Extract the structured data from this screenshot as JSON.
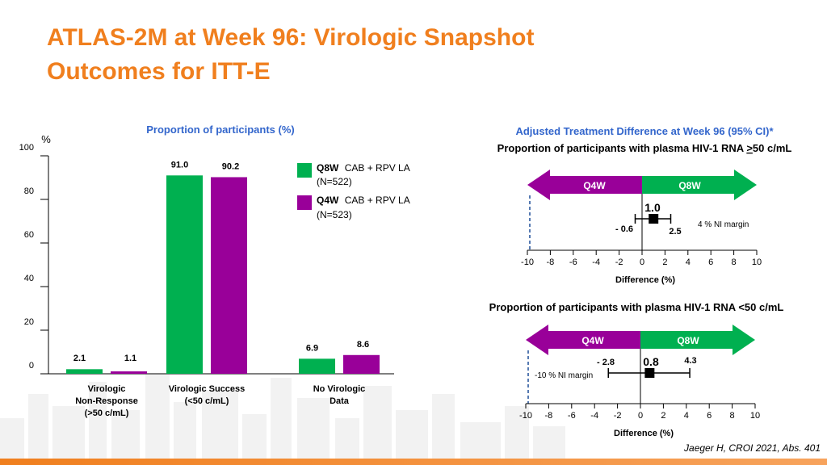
{
  "title_line1": "ATLAS-2M at Week 96: Virologic Snapshot",
  "title_line2": "Outcomes for ITT-E",
  "citation": "Jaeger H, CROI 2021, Abs. 401",
  "colors": {
    "q8w": "#00B050",
    "q4w": "#990099",
    "title": "#F07F1E",
    "accent_blue": "#3366CC"
  },
  "chart_data": [
    {
      "type": "bar",
      "title": "Proportion of participants (%)",
      "ylabel": "%",
      "ylim": [
        0,
        100
      ],
      "yticks": [
        0,
        20,
        40,
        60,
        80,
        100
      ],
      "categories": [
        [
          "Virologic",
          "Non-Response",
          "(>50 c/mL)"
        ],
        [
          "Virologic Success",
          "(<50 c/mL)"
        ],
        [
          "No Virologic",
          "Data"
        ]
      ],
      "series": [
        {
          "name": "Q8W",
          "name_rest": "CAB + RPV LA",
          "n": "(N=522)",
          "color": "#00B050",
          "values": [
            2.1,
            91.0,
            6.9
          ],
          "labels": [
            "2.1",
            "91.0",
            "6.9"
          ]
        },
        {
          "name": "Q4W",
          "name_rest": "CAB + RPV LA",
          "n": "(N=523)",
          "color": "#990099",
          "values": [
            1.1,
            90.2,
            8.6
          ],
          "labels": [
            "1.1",
            "90.2",
            "8.6"
          ]
        }
      ],
      "legend_position": "top-right"
    },
    {
      "type": "forest",
      "header": "Adjusted Treatment Difference at Week 96 (95% CI)*",
      "title": "Proportion of participants with plasma HIV-1 RNA >50 c/mL",
      "arrow_left": "Q4W",
      "arrow_right": "Q8W",
      "estimate": 1.0,
      "estimate_label": "1.0",
      "ci": [
        -0.6,
        2.5
      ],
      "ci_labels": [
        "- 0.6",
        "2.5"
      ],
      "margin_label": "4 % NI margin",
      "xlim": [
        -10,
        10
      ],
      "xticks": [
        "-10",
        "-8",
        "-6",
        "-4",
        "-2",
        "0",
        "2",
        "4",
        "6",
        "8",
        "10"
      ],
      "xlabel": "Difference (%)"
    },
    {
      "type": "forest",
      "title": "Proportion of participants with plasma HIV-1 RNA <50 c/mL",
      "arrow_left": "Q4W",
      "arrow_right": "Q8W",
      "estimate": 0.8,
      "estimate_label": "0.8",
      "ci": [
        -2.8,
        4.3
      ],
      "ci_labels": [
        "- 2.8",
        "4.3"
      ],
      "margin_label": "-10 % NI margin",
      "xlim": [
        -10,
        10
      ],
      "xticks": [
        "-10",
        "-8",
        "-6",
        "-4",
        "-2",
        "0",
        "2",
        "4",
        "6",
        "8",
        "10"
      ],
      "xlabel": "Difference (%)"
    }
  ]
}
